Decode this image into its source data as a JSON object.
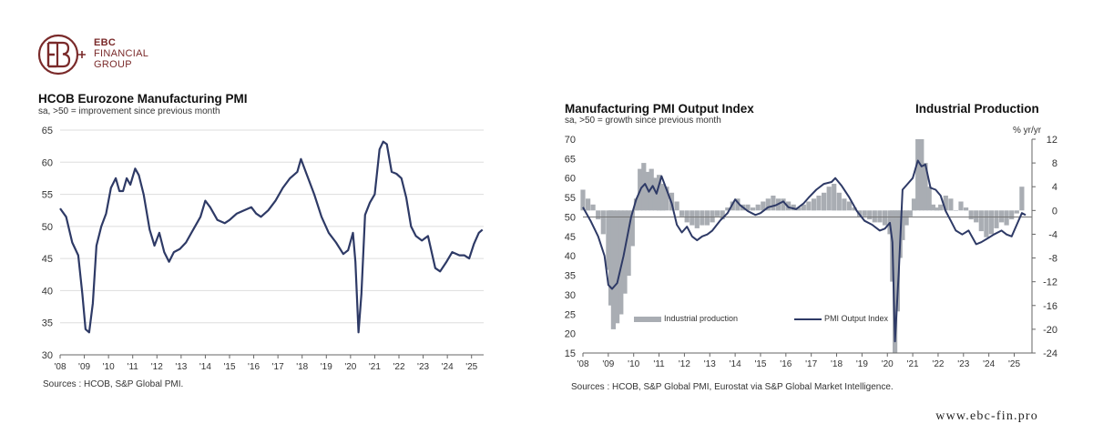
{
  "brand": {
    "line1": "EBC",
    "line2": "FINANCIAL",
    "line3": "GROUP",
    "website": "www.ebc-fin.pro",
    "color": "#7a2a2a"
  },
  "left_panel": {
    "title": "HCOB Eurozone Manufacturing PMI",
    "subtitle": "sa, >50 = improvement  since previous month",
    "source": "Sources : HCOB, S&P Global PMI."
  },
  "right_panel": {
    "title": "Manufacturing PMI Output Index",
    "title_right": "Industrial Production",
    "subtitle": "sa, >50 = growth  since previous month",
    "right_unit": "% yr/yr",
    "legend_bar": "Industrial production",
    "legend_line": "PMI Output Index",
    "source": "Sources : HCOB, S&P Global PMI, Eurostat via S&P Global Market Intelligence."
  },
  "colors": {
    "line": "#2e3a66",
    "bars": "#a9adb3",
    "grid": "#dddddd"
  },
  "chart_data": [
    {
      "type": "line",
      "title": "HCOB Eurozone Manufacturing PMI",
      "x_tick_labels": [
        "'08",
        "'09",
        "'10",
        "'11",
        "'12",
        "'13",
        "'14",
        "'15",
        "'16",
        "'17",
        "'18",
        "'19",
        "'20",
        "'21",
        "'22",
        "'23",
        "'24",
        "'25"
      ],
      "y_ticks": [
        30,
        35,
        40,
        45,
        50,
        55,
        60,
        65
      ],
      "ylim": [
        30,
        65
      ],
      "grid": "horizontal",
      "series": [
        {
          "x": [
            2008.0,
            2008.25,
            2008.5,
            2008.75,
            2008.92,
            2009.05,
            2009.2,
            2009.35,
            2009.5,
            2009.7,
            2009.9,
            2010.1,
            2010.3,
            2010.45,
            2010.6,
            2010.75,
            2010.9,
            2011.1,
            2011.25,
            2011.45,
            2011.7,
            2011.9,
            2012.1,
            2012.3,
            2012.5,
            2012.7,
            2012.95,
            2013.2,
            2013.5,
            2013.8,
            2014.0,
            2014.2,
            2014.5,
            2014.8,
            2015.0,
            2015.3,
            2015.6,
            2015.9,
            2016.1,
            2016.3,
            2016.6,
            2016.9,
            2017.2,
            2017.5,
            2017.8,
            2017.95,
            2018.2,
            2018.5,
            2018.8,
            2019.1,
            2019.4,
            2019.7,
            2019.9,
            2020.1,
            2020.2,
            2020.33,
            2020.45,
            2020.6,
            2020.8,
            2021.0,
            2021.2,
            2021.35,
            2021.5,
            2021.7,
            2021.9,
            2022.1,
            2022.3,
            2022.5,
            2022.7,
            2022.95,
            2023.2,
            2023.5,
            2023.7,
            2023.95,
            2024.2,
            2024.5,
            2024.7,
            2024.9,
            2025.1,
            2025.3,
            2025.45
          ],
          "values": [
            52.8,
            51.5,
            47.5,
            45.5,
            39.5,
            34.0,
            33.5,
            38.0,
            47.0,
            50.0,
            52.0,
            56.0,
            57.5,
            55.5,
            55.5,
            57.5,
            56.5,
            59.0,
            58.0,
            55.0,
            49.5,
            47.0,
            49.0,
            46.0,
            44.5,
            46.0,
            46.5,
            47.5,
            49.5,
            51.5,
            54.0,
            53.0,
            51.0,
            50.5,
            51.0,
            52.0,
            52.5,
            53.0,
            52.0,
            51.5,
            52.5,
            54.0,
            56.0,
            57.5,
            58.5,
            60.5,
            58.0,
            55.0,
            51.5,
            49.0,
            47.5,
            45.7,
            46.3,
            49.0,
            44.5,
            33.5,
            39.5,
            51.8,
            53.7,
            55.0,
            62.0,
            63.2,
            62.8,
            58.5,
            58.2,
            57.5,
            54.5,
            50.0,
            48.5,
            47.8,
            48.5,
            43.5,
            43.0,
            44.4,
            46.0,
            45.5,
            45.5,
            45.0,
            47.3,
            49.0,
            49.5
          ]
        }
      ]
    },
    {
      "type": "bar",
      "title": "Manufacturing PMI Output Index",
      "x_tick_labels": [
        "'08",
        "'09",
        "'10",
        "'11",
        "'12",
        "'13",
        "'14",
        "'15",
        "'16",
        "'17",
        "'18",
        "'19",
        "'20",
        "'21",
        "'22",
        "'23",
        "'24",
        "'25"
      ],
      "y_left_ticks": [
        15,
        20,
        25,
        30,
        35,
        40,
        45,
        50,
        55,
        60,
        65,
        70
      ],
      "y_right_ticks": [
        12,
        8,
        4,
        0,
        -4,
        -8,
        -12,
        -16,
        -20,
        -24
      ],
      "ylim_left": [
        15,
        70
      ],
      "ylim_right": [
        -24,
        12
      ],
      "legend_position": "bottom",
      "series": [
        {
          "name": "Industrial production",
          "type": "bar",
          "axis": "right",
          "x": [
            2008.0,
            2008.2,
            2008.4,
            2008.6,
            2008.8,
            2009.0,
            2009.1,
            2009.2,
            2009.35,
            2009.5,
            2009.65,
            2009.8,
            2009.95,
            2010.1,
            2010.25,
            2010.4,
            2010.55,
            2010.7,
            2010.85,
            2011.0,
            2011.15,
            2011.3,
            2011.5,
            2011.7,
            2011.9,
            2012.1,
            2012.3,
            2012.5,
            2012.7,
            2012.9,
            2013.1,
            2013.3,
            2013.5,
            2013.7,
            2013.9,
            2014.1,
            2014.3,
            2014.5,
            2014.7,
            2014.9,
            2015.1,
            2015.3,
            2015.5,
            2015.7,
            2015.9,
            2016.1,
            2016.3,
            2016.5,
            2016.7,
            2016.9,
            2017.1,
            2017.3,
            2017.5,
            2017.7,
            2017.9,
            2018.1,
            2018.3,
            2018.5,
            2018.7,
            2018.9,
            2019.1,
            2019.3,
            2019.5,
            2019.7,
            2019.9,
            2020.1,
            2020.2,
            2020.3,
            2020.4,
            2020.5,
            2020.6,
            2020.75,
            2020.9,
            2021.05,
            2021.2,
            2021.35,
            2021.5,
            2021.65,
            2021.8,
            2021.95,
            2022.1,
            2022.3,
            2022.5,
            2022.7,
            2022.9,
            2023.1,
            2023.3,
            2023.5,
            2023.7,
            2023.9,
            2024.1,
            2024.3,
            2024.5,
            2024.7,
            2024.9,
            2025.1,
            2025.3
          ],
          "values": [
            3.5,
            2.0,
            1.0,
            -1.5,
            -4.0,
            -10.0,
            -16.0,
            -20.0,
            -19.0,
            -17.5,
            -14.0,
            -11.0,
            -6.0,
            2.0,
            7.0,
            8.0,
            6.5,
            7.0,
            5.5,
            6.0,
            4.5,
            4.0,
            3.0,
            1.5,
            -1.0,
            -2.0,
            -2.5,
            -3.0,
            -2.5,
            -2.5,
            -2.0,
            -1.0,
            -1.5,
            0.5,
            1.5,
            2.0,
            1.0,
            1.0,
            0.5,
            1.0,
            1.5,
            2.0,
            2.5,
            2.0,
            2.0,
            1.5,
            1.0,
            0.5,
            1.0,
            1.5,
            2.0,
            2.5,
            3.0,
            4.0,
            4.5,
            3.0,
            2.0,
            1.5,
            0.5,
            -1.0,
            -1.0,
            -1.5,
            -2.0,
            -2.0,
            -2.5,
            -4.0,
            -12.0,
            -24.0,
            -17.0,
            -8.0,
            -5.0,
            -2.5,
            -1.0,
            2.0,
            12.0,
            12.0,
            8.0,
            4.0,
            1.0,
            0.5,
            1.0,
            2.5,
            2.0,
            0.0,
            1.5,
            0.5,
            -1.5,
            -2.0,
            -3.5,
            -4.5,
            -4.0,
            -3.0,
            -2.0,
            -2.5,
            -1.5,
            -0.5,
            4.0
          ]
        },
        {
          "name": "PMI Output Index",
          "type": "line",
          "axis": "left",
          "x": [
            2008.0,
            2008.3,
            2008.6,
            2008.85,
            2009.0,
            2009.15,
            2009.35,
            2009.6,
            2009.9,
            2010.1,
            2010.3,
            2010.45,
            2010.6,
            2010.75,
            2010.9,
            2011.1,
            2011.3,
            2011.5,
            2011.7,
            2011.9,
            2012.1,
            2012.3,
            2012.5,
            2012.7,
            2012.9,
            2013.1,
            2013.4,
            2013.7,
            2014.0,
            2014.2,
            2014.5,
            2014.8,
            2015.0,
            2015.3,
            2015.6,
            2015.9,
            2016.1,
            2016.4,
            2016.7,
            2016.9,
            2017.2,
            2017.5,
            2017.8,
            2017.95,
            2018.2,
            2018.5,
            2018.8,
            2019.1,
            2019.4,
            2019.7,
            2019.9,
            2020.1,
            2020.2,
            2020.3,
            2020.45,
            2020.6,
            2020.8,
            2021.0,
            2021.2,
            2021.35,
            2021.5,
            2021.7,
            2021.9,
            2022.1,
            2022.3,
            2022.5,
            2022.7,
            2022.95,
            2023.2,
            2023.5,
            2023.7,
            2023.95,
            2024.2,
            2024.5,
            2024.7,
            2024.9,
            2025.1,
            2025.3,
            2025.45
          ],
          "values": [
            52.5,
            49.0,
            45.0,
            40.0,
            32.5,
            31.5,
            33.0,
            40.0,
            50.0,
            54.5,
            57.5,
            58.5,
            56.5,
            58.0,
            56.0,
            60.5,
            57.0,
            53.5,
            48.0,
            46.0,
            47.5,
            45.0,
            44.0,
            45.0,
            45.5,
            46.5,
            49.0,
            51.0,
            54.5,
            53.0,
            51.5,
            50.5,
            51.0,
            52.5,
            53.0,
            54.0,
            52.5,
            52.0,
            53.5,
            55.0,
            57.0,
            58.5,
            59.0,
            60.0,
            58.0,
            55.0,
            51.5,
            49.0,
            48.0,
            46.5,
            47.0,
            48.5,
            43.5,
            18.0,
            36.0,
            57.0,
            58.5,
            60.0,
            64.5,
            63.0,
            63.5,
            57.5,
            57.0,
            55.5,
            51.5,
            49.0,
            46.5,
            45.5,
            46.5,
            43.0,
            43.5,
            44.5,
            45.5,
            46.5,
            45.5,
            45.0,
            48.0,
            51.0,
            50.5
          ]
        }
      ]
    }
  ]
}
